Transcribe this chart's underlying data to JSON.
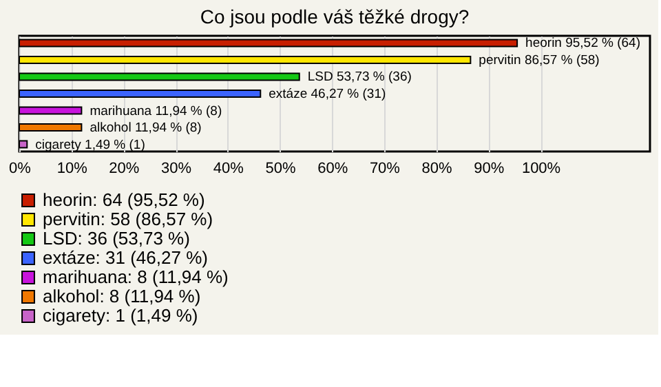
{
  "chart_data": {
    "type": "bar",
    "orientation": "horizontal",
    "title": "Co jsou podle váš těžké drogy?",
    "categories": [
      "heorin",
      "pervitin",
      "LSD",
      "extáze",
      "marihuana",
      "alkohol",
      "cigarety"
    ],
    "series": [
      {
        "name": "heorin: 64 (95,52 %)",
        "color": "#c81e00",
        "values": [
          95.52,
          null,
          null,
          null,
          null,
          null,
          null
        ],
        "value_labels": [
          "95,52 % (64)",
          null,
          null,
          null,
          null,
          null,
          null
        ]
      },
      {
        "name": "pervitin: 58 (86,57 %)",
        "color": "#ffe600",
        "values": [
          null,
          86.57,
          null,
          null,
          null,
          null,
          null
        ],
        "value_labels": [
          null,
          "86,57 % (58)",
          null,
          null,
          null,
          null,
          null
        ]
      },
      {
        "name": "LSD: 36 (53,73 %)",
        "color": "#14c814",
        "values": [
          null,
          null,
          53.73,
          null,
          null,
          null,
          null
        ],
        "value_labels": [
          null,
          null,
          "53,73 % (36)",
          null,
          null,
          null,
          null
        ]
      },
      {
        "name": "extáze: 31 (46,27 %)",
        "color": "#3c64ff",
        "values": [
          null,
          null,
          null,
          46.27,
          null,
          null,
          null
        ],
        "value_labels": [
          null,
          null,
          null,
          "46,27 % (31)",
          null,
          null,
          null
        ]
      },
      {
        "name": "marihuana: 8 (11,94 %)",
        "color": "#c814dc",
        "values": [
          null,
          null,
          null,
          null,
          11.94,
          null,
          null
        ],
        "value_labels": [
          null,
          null,
          null,
          null,
          "11,94 % (8)",
          null,
          null
        ]
      },
      {
        "name": "alkohol: 8 (11,94 %)",
        "color": "#f07800",
        "values": [
          null,
          null,
          null,
          null,
          null,
          11.94,
          null
        ],
        "value_labels": [
          null,
          null,
          null,
          null,
          null,
          "11,94 % (8)",
          null
        ]
      },
      {
        "name": "cigarety: 1 (1,49 %)",
        "color": "#c864c8",
        "values": [
          null,
          null,
          null,
          null,
          null,
          null,
          1.49
        ],
        "value_labels": [
          null,
          null,
          null,
          null,
          null,
          null,
          "1,49 % (1)"
        ]
      }
    ],
    "xlim": [
      0,
      121
    ],
    "xticks": [
      {
        "value": 0,
        "label": "0%"
      },
      {
        "value": 10,
        "label": "10%"
      },
      {
        "value": 20,
        "label": "20%"
      },
      {
        "value": 30,
        "label": "30%"
      },
      {
        "value": 40,
        "label": "40%"
      },
      {
        "value": 50,
        "label": "50%"
      },
      {
        "value": 60,
        "label": "60%"
      },
      {
        "value": 70,
        "label": "70%"
      },
      {
        "value": 80,
        "label": "80%"
      },
      {
        "value": 90,
        "label": "90%"
      },
      {
        "value": 100,
        "label": "100%"
      }
    ],
    "grid": "x",
    "legend": "bottom"
  }
}
